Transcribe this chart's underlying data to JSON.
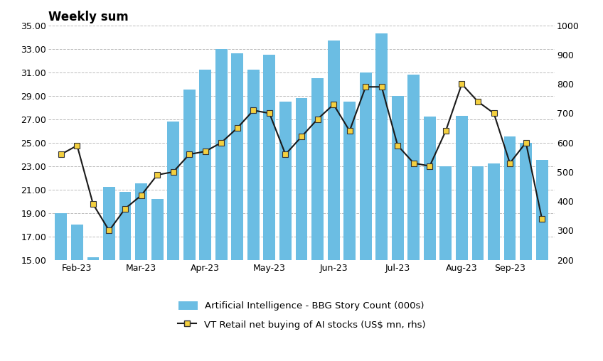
{
  "title": "Weekly sum",
  "bar_color": "#6BBDE3",
  "line_color": "#1a1a1a",
  "marker_color": "#F4D03F",
  "marker_edge_color": "#333333",
  "background_color": "#ffffff",
  "grid_color": "#bbbbbb",
  "left_ylim": [
    15.0,
    35.0
  ],
  "left_yticks": [
    15.0,
    17.0,
    19.0,
    21.0,
    23.0,
    25.0,
    27.0,
    29.0,
    31.0,
    33.0,
    35.0
  ],
  "right_ylim": [
    200,
    1000
  ],
  "right_yticks": [
    200,
    300,
    400,
    500,
    600,
    700,
    800,
    900,
    1000
  ],
  "x_labels": [
    "Feb-23",
    "Mar-23",
    "Apr-23",
    "May-23",
    "Jun-23",
    "Jul-23",
    "Aug-23",
    "Sep-23"
  ],
  "n_bars": 31,
  "bar_values": [
    19.0,
    18.0,
    15.2,
    21.2,
    20.8,
    21.5,
    20.2,
    26.8,
    29.5,
    31.2,
    33.0,
    32.6,
    31.2,
    32.5,
    28.5,
    28.8,
    30.5,
    33.7,
    28.5,
    31.0,
    34.3,
    29.0,
    30.8,
    27.2,
    23.0,
    27.3,
    23.0,
    23.2,
    25.5,
    25.0,
    23.5
  ],
  "line_values": [
    560,
    590,
    390,
    300,
    375,
    420,
    490,
    500,
    560,
    570,
    600,
    650,
    710,
    700,
    560,
    620,
    680,
    730,
    640,
    790,
    790,
    590,
    530,
    520,
    640,
    800,
    740,
    700,
    530,
    600,
    340
  ],
  "month_tick_positions": [
    1,
    5,
    9,
    13,
    17,
    21,
    25,
    28
  ],
  "legend_bar_label": "Artificial Intelligence - BBG Story Count (000s)",
  "legend_line_label": "VT Retail net buying of AI stocks (US$ mn, rhs)"
}
